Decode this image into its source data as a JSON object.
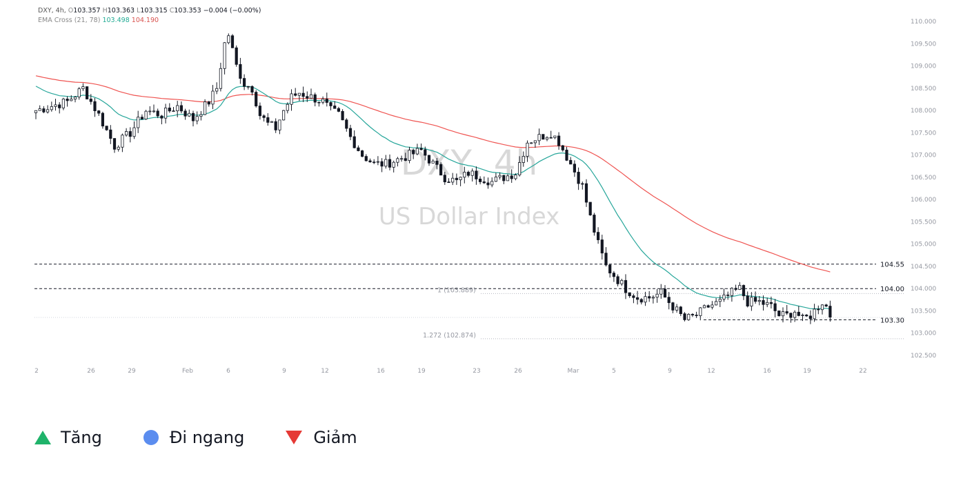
{
  "header": {
    "symbol": "DXY, 4h,",
    "o_label": "O",
    "o_value": "103.357",
    "h_label": "H",
    "h_value": "103.363",
    "l_label": "L",
    "l_value": "103.315",
    "c_label": "C",
    "c_value": "103.353",
    "change": "−0.004 (−0.00%)",
    "ema_label": "EMA Cross (21, 78)",
    "ema_fast": "103.498",
    "ema_slow": "104.190"
  },
  "watermark": {
    "line1": "DXY, 4h",
    "line2": "US Dollar Index"
  },
  "colors": {
    "up": "#1fb36a",
    "flat": "#5b8def",
    "down": "#e53935",
    "ema_fast": "#26a69a",
    "ema_slow": "#ef5350",
    "candle": "#131722"
  },
  "legend": [
    {
      "label": "Tăng",
      "icon": "triangle-up-icon"
    },
    {
      "label": "Đi ngang",
      "icon": "circle-icon"
    },
    {
      "label": "Giảm",
      "icon": "triangle-down-icon"
    }
  ],
  "chart_data": {
    "type": "candlestick",
    "title": "US Dollar Index",
    "symbol": "DXY",
    "timeframe": "4h",
    "ylim": [
      102.5,
      110.0
    ],
    "y_ticks": [
      "110.000",
      "109.500",
      "109.000",
      "108.500",
      "108.000",
      "107.500",
      "107.000",
      "106.500",
      "106.000",
      "105.500",
      "105.000",
      "104.500",
      "104.000",
      "103.500",
      "103.000",
      "102.500"
    ],
    "x_ticks": [
      "2",
      "26",
      "29",
      "Feb",
      "6",
      "9",
      "12",
      "16",
      "19",
      "23",
      "26",
      "Mar",
      "5",
      "9",
      "12",
      "16",
      "19",
      "22"
    ],
    "levels": [
      {
        "value": 104.55,
        "label": "104.55"
      },
      {
        "value": 104.0,
        "label": "104.00"
      },
      {
        "value": 103.3,
        "label": "103.30"
      }
    ],
    "fib_levels": [
      {
        "value": 103.889,
        "label": "1 (103.889)"
      },
      {
        "value": 102.874,
        "label": "1.272 (102.874)"
      }
    ],
    "price_path": [
      [
        0,
        108.0
      ],
      [
        8,
        108.2
      ],
      [
        12,
        108.5
      ],
      [
        16,
        107.9
      ],
      [
        20,
        107.2
      ],
      [
        24,
        107.5
      ],
      [
        28,
        108.0
      ],
      [
        32,
        107.9
      ],
      [
        36,
        108.1
      ],
      [
        40,
        107.8
      ],
      [
        44,
        108.2
      ],
      [
        46,
        108.5
      ],
      [
        48,
        109.5
      ],
      [
        49,
        109.7
      ],
      [
        51,
        109.0
      ],
      [
        53,
        108.6
      ],
      [
        55,
        108.5
      ],
      [
        57,
        107.9
      ],
      [
        59,
        107.7
      ],
      [
        61,
        107.6
      ],
      [
        63,
        108.0
      ],
      [
        65,
        108.3
      ],
      [
        67,
        108.4
      ],
      [
        70,
        108.3
      ],
      [
        73,
        108.2
      ],
      [
        75,
        108.0
      ],
      [
        77,
        107.9
      ],
      [
        80,
        107.4
      ],
      [
        83,
        107.0
      ],
      [
        86,
        106.8
      ],
      [
        89,
        106.8
      ],
      [
        92,
        106.9
      ],
      [
        95,
        107.0
      ],
      [
        98,
        107.1
      ],
      [
        101,
        106.8
      ],
      [
        104,
        106.5
      ],
      [
        107,
        106.4
      ],
      [
        110,
        106.6
      ],
      [
        113,
        106.5
      ],
      [
        116,
        106.4
      ],
      [
        119,
        106.5
      ],
      [
        122,
        106.6
      ],
      [
        125,
        107.3
      ],
      [
        128,
        107.4
      ],
      [
        131,
        107.5
      ],
      [
        133,
        107.3
      ],
      [
        136,
        106.8
      ],
      [
        139,
        106.3
      ],
      [
        141,
        105.6
      ],
      [
        143,
        105.0
      ],
      [
        145,
        104.5
      ],
      [
        147,
        104.3
      ],
      [
        150,
        104.0
      ],
      [
        153,
        103.8
      ],
      [
        156,
        103.8
      ],
      [
        159,
        103.9
      ],
      [
        162,
        103.6
      ],
      [
        165,
        103.3
      ],
      [
        168,
        103.4
      ],
      [
        171,
        103.6
      ],
      [
        174,
        103.7
      ],
      [
        177,
        103.9
      ],
      [
        179,
        104.0
      ],
      [
        181,
        103.7
      ],
      [
        184,
        103.7
      ],
      [
        187,
        103.6
      ],
      [
        189,
        103.4
      ],
      [
        191,
        103.4
      ],
      [
        193,
        103.5
      ],
      [
        195,
        103.3
      ],
      [
        197,
        103.4
      ],
      [
        199,
        103.6
      ],
      [
        200,
        103.7
      ],
      [
        201,
        103.6
      ],
      [
        202,
        103.4
      ]
    ],
    "ema_fast_end": 103.498,
    "ema_slow_end": 104.19
  }
}
